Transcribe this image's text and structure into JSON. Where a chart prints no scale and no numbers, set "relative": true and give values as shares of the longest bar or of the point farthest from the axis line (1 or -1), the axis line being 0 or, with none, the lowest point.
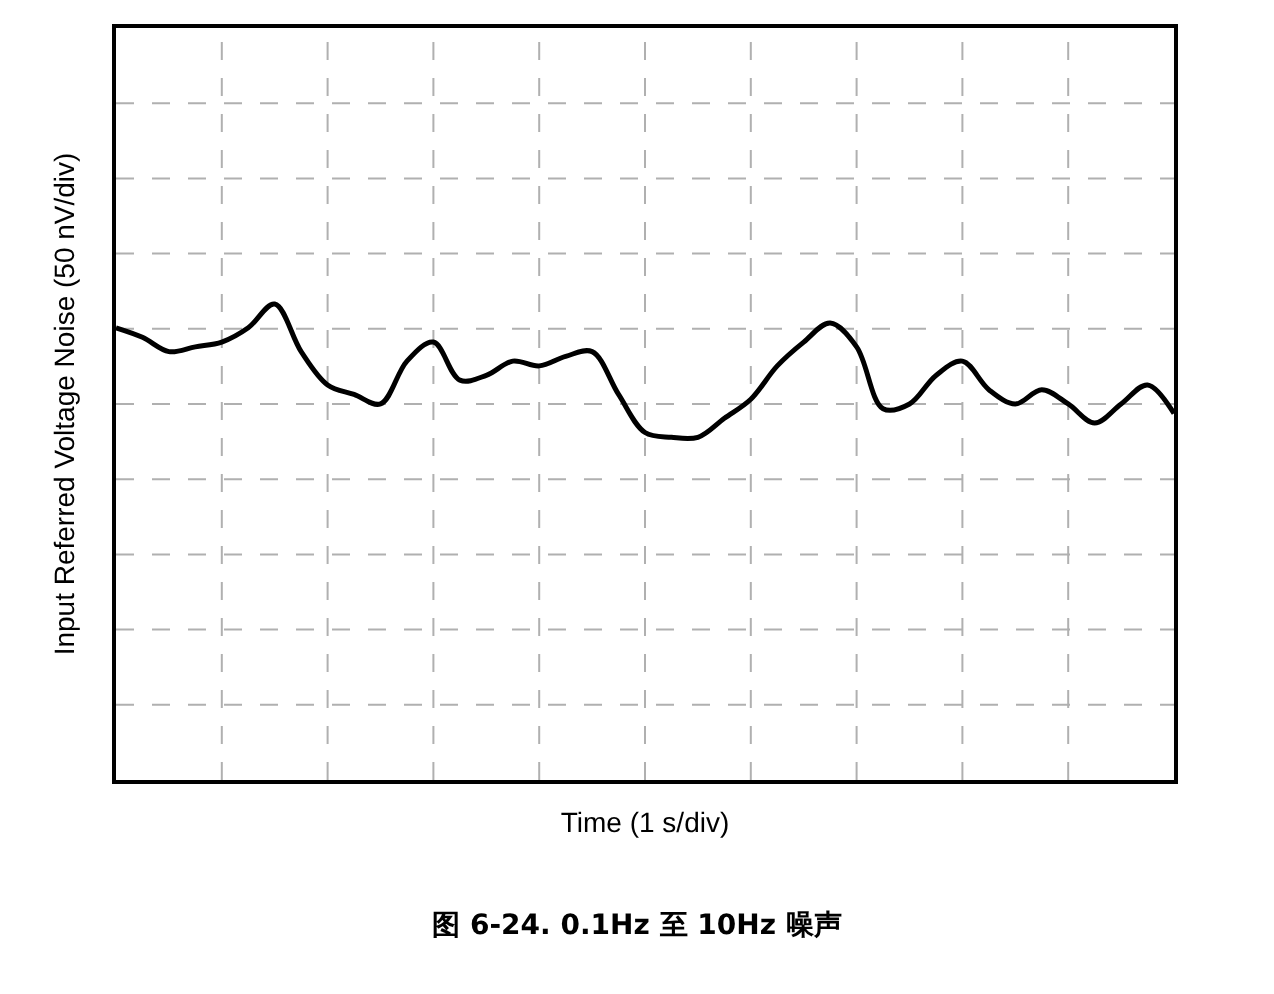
{
  "chart_data": {
    "type": "line",
    "title": "图 6-24. 0.1Hz 至 10Hz 噪声",
    "xlabel": "Time (1 s/div)",
    "ylabel": "Input Referred Voltage Noise (50 nV/div)",
    "relative": true,
    "grid": true,
    "legend": false,
    "marker": "none",
    "line_style": "solid",
    "tick_labels": false,
    "categories": [
      null,
      null,
      null,
      null,
      null,
      null,
      null,
      null,
      null,
      null,
      null,
      null,
      null,
      null,
      null,
      null,
      null,
      null,
      null,
      null,
      null,
      null,
      null,
      null,
      null,
      null,
      null,
      null,
      null,
      null,
      null,
      null,
      null,
      null,
      null,
      null,
      null,
      null,
      null,
      null,
      null
    ],
    "series": [
      {
        "color": "#000000",
        "values": [
          0.95,
          0.93,
          0.9,
          0.91,
          0.92,
          0.95,
          1,
          0.9,
          0.83,
          0.81,
          0.79,
          0.88,
          0.92,
          0.84,
          0.85,
          0.88,
          0.87,
          0.89,
          0.9,
          0.81,
          0.73,
          0.72,
          0.72,
          0.76,
          0.8,
          0.87,
          0.92,
          0.96,
          0.91,
          0.78,
          0.79,
          0.85,
          0.88,
          0.82,
          0.79,
          0.82,
          0.79,
          0.75,
          0.79,
          0.83,
          0.77
        ]
      }
    ]
  }
}
